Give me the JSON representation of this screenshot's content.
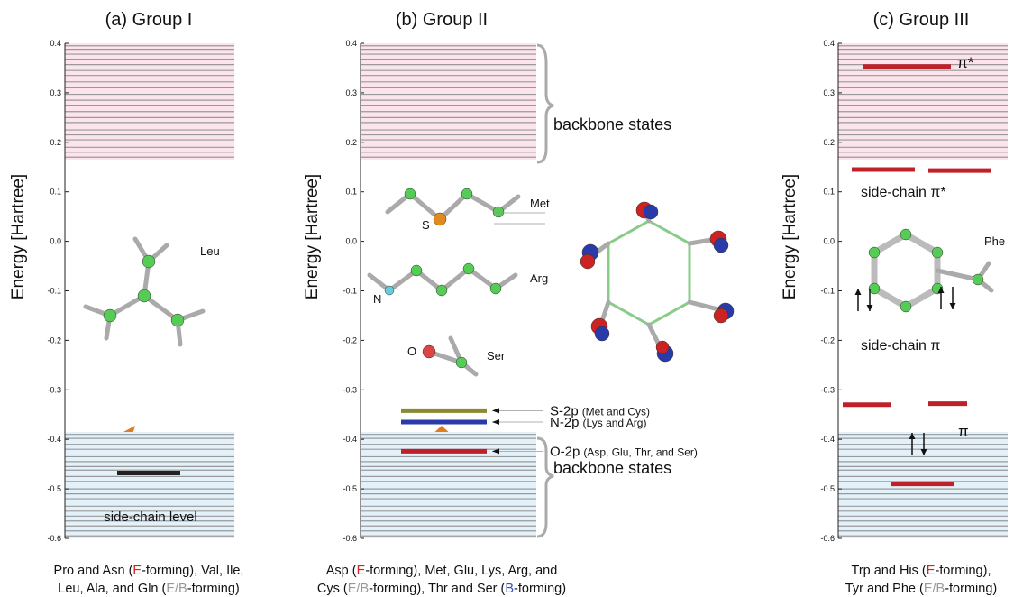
{
  "backbone": {
    "upper_band": [
      0.165,
      0.4
    ],
    "lower_band": [
      -0.6,
      -0.385
    ],
    "upper_levels": [
      0.17,
      0.18,
      0.19,
      0.205,
      0.215,
      0.225,
      0.24,
      0.25,
      0.262,
      0.275,
      0.285,
      0.297,
      0.31,
      0.322,
      0.335,
      0.345,
      0.357,
      0.368,
      0.378,
      0.388,
      0.395
    ],
    "lower_levels": [
      -0.39,
      -0.398,
      -0.41,
      -0.42,
      -0.435,
      -0.445,
      -0.455,
      -0.462,
      -0.475,
      -0.485,
      -0.5,
      -0.51,
      -0.52,
      -0.535,
      -0.545,
      -0.555,
      -0.565,
      -0.575,
      -0.585,
      -0.595
    ]
  },
  "panels": [
    {
      "title": "(a) Group I",
      "ylabel": "Energy [Hartree]",
      "ylim": [
        -0.6,
        0.4
      ],
      "yticks": [
        0.4,
        0.3,
        0.2,
        0.1,
        {
          "value": 0,
          "label": "0.0"
        },
        -0.1,
        -0.2,
        -0.3,
        -0.4,
        -0.5,
        -0.6
      ],
      "levels": [
        {
          "energy": -0.468,
          "color": "#222222"
        }
      ],
      "labels": [
        "Leu",
        "side-chain level"
      ],
      "caption": [
        [
          {
            "text": "Pro and Asn ("
          },
          {
            "text": "E",
            "color": "#d42020"
          },
          {
            "text": "-forming), Val, Ile,"
          }
        ],
        [
          {
            "text": "Leu, Ala, and Gln ("
          },
          {
            "text": "E/B",
            "color": "#999999"
          },
          {
            "text": "-forming)"
          }
        ]
      ]
    },
    {
      "title": "(b) Group II",
      "ylabel": "Energy [Hartree]",
      "ylim": [
        -0.6,
        0.4
      ],
      "yticks": [
        0.4,
        0.3,
        0.2,
        0.1,
        {
          "value": 0,
          "label": "0.0"
        },
        -0.1,
        -0.2,
        -0.3,
        -0.4,
        -0.5,
        -0.6
      ],
      "levels": [
        {
          "energy": -0.342,
          "color": "#8a8a30"
        },
        {
          "energy": -0.365,
          "color": "#2a3aa8"
        },
        {
          "energy": -0.424,
          "color": "#c0202a"
        }
      ],
      "level_labels": [
        {
          "name": "S-2p",
          "detail": "(Met and Cys)"
        },
        {
          "name": "N-2p",
          "detail": "(Lys and Arg)"
        },
        {
          "name": "O-2p",
          "detail": "(Asp, Glu, Thr, and Ser)"
        }
      ],
      "brace_labels": [
        "backbone states",
        "backbone states"
      ],
      "labels": [
        "Met",
        "S",
        "Arg",
        "N",
        "O",
        "Ser"
      ],
      "caption": [
        [
          {
            "text": "Asp ("
          },
          {
            "text": "E",
            "color": "#d42020"
          },
          {
            "text": "-forming), Met, Glu, Lys, Arg, and"
          }
        ],
        [
          {
            "text": "Cys ("
          },
          {
            "text": "E/B",
            "color": "#999999"
          },
          {
            "text": "-forming), Thr and Ser ("
          },
          {
            "text": "B",
            "color": "#3050c0"
          },
          {
            "text": "-forming)"
          }
        ]
      ]
    },
    {
      "title": "(c) Group III",
      "ylabel": "Energy [Hartree]",
      "ylim": [
        -0.6,
        0.4
      ],
      "yticks": [
        0.4,
        0.3,
        0.2,
        0.1,
        {
          "value": 0,
          "label": "0.0"
        },
        -0.1,
        -0.2,
        -0.3,
        -0.4,
        -0.5,
        -0.6
      ],
      "levels": [
        {
          "energy": 0.353,
          "color": "#c0202a"
        },
        {
          "energy": 0.145,
          "color": "#c0202a"
        },
        {
          "energy": 0.143,
          "color": "#c0202a"
        },
        {
          "energy": -0.33,
          "color": "#c0202a"
        },
        {
          "energy": -0.328,
          "color": "#c0202a"
        },
        {
          "energy": -0.49,
          "color": "#c0202a"
        }
      ],
      "labels": [
        "π*",
        "side-chain π*",
        "Phe",
        "side-chain π",
        "π"
      ],
      "caption": [
        [
          {
            "text": "Trp and His ("
          },
          {
            "text": "E",
            "color": "#d42020"
          },
          {
            "text": "-forming),"
          }
        ],
        [
          {
            "text": "Tyr and Phe ("
          },
          {
            "text": "E/B",
            "color": "#999999"
          },
          {
            "text": "-forming)"
          }
        ]
      ]
    }
  ]
}
